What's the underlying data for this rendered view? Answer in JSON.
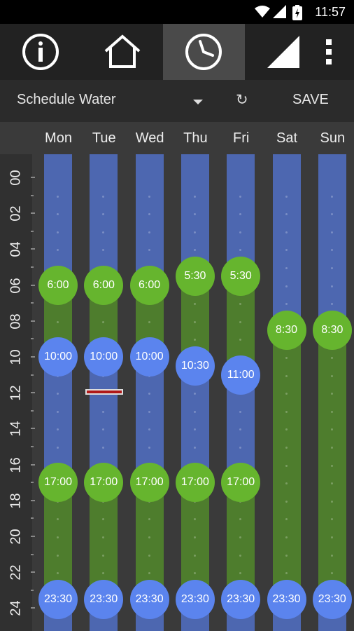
{
  "status_bar": {
    "time": "11:57",
    "icons": [
      "wifi-icon",
      "signal-icon",
      "battery-icon"
    ]
  },
  "toolbar": {
    "tabs": [
      {
        "name": "info",
        "icon": "info-icon"
      },
      {
        "name": "home",
        "icon": "home-icon"
      },
      {
        "name": "schedule",
        "icon": "clock-icon",
        "active": true
      },
      {
        "name": "signal",
        "icon": "signal-icon"
      },
      {
        "name": "more",
        "icon": "overflow-menu-icon"
      }
    ]
  },
  "subbar": {
    "selector_label": "Schedule Water",
    "refresh_icon": "↻",
    "save_label": "SAVE"
  },
  "hours": [
    "00",
    "02",
    "04",
    "06",
    "08",
    "10",
    "12",
    "14",
    "16",
    "18",
    "20",
    "22",
    "24"
  ],
  "days": [
    {
      "name": "Mon",
      "times": [
        "6:00",
        "10:00",
        "17:00",
        "23:30"
      ]
    },
    {
      "name": "Tue",
      "times": [
        "6:00",
        "10:00",
        "17:00",
        "23:30"
      ]
    },
    {
      "name": "Wed",
      "times": [
        "6:00",
        "10:00",
        "17:00",
        "23:30"
      ]
    },
    {
      "name": "Thu",
      "times": [
        "5:30",
        "10:30",
        "17:00",
        "23:30"
      ]
    },
    {
      "name": "Fri",
      "times": [
        "5:30",
        "11:00",
        "17:00",
        "23:30"
      ]
    },
    {
      "name": "Sat",
      "times": [
        "8:30",
        "23:30"
      ]
    },
    {
      "name": "Sun",
      "times": [
        "8:30",
        "23:30"
      ]
    }
  ],
  "colors": {
    "on": "#66b52e",
    "off": "#5b84ee",
    "on_bar": "#4e7d2d",
    "off_bar": "#4d67b0",
    "marker": "#b01818"
  }
}
